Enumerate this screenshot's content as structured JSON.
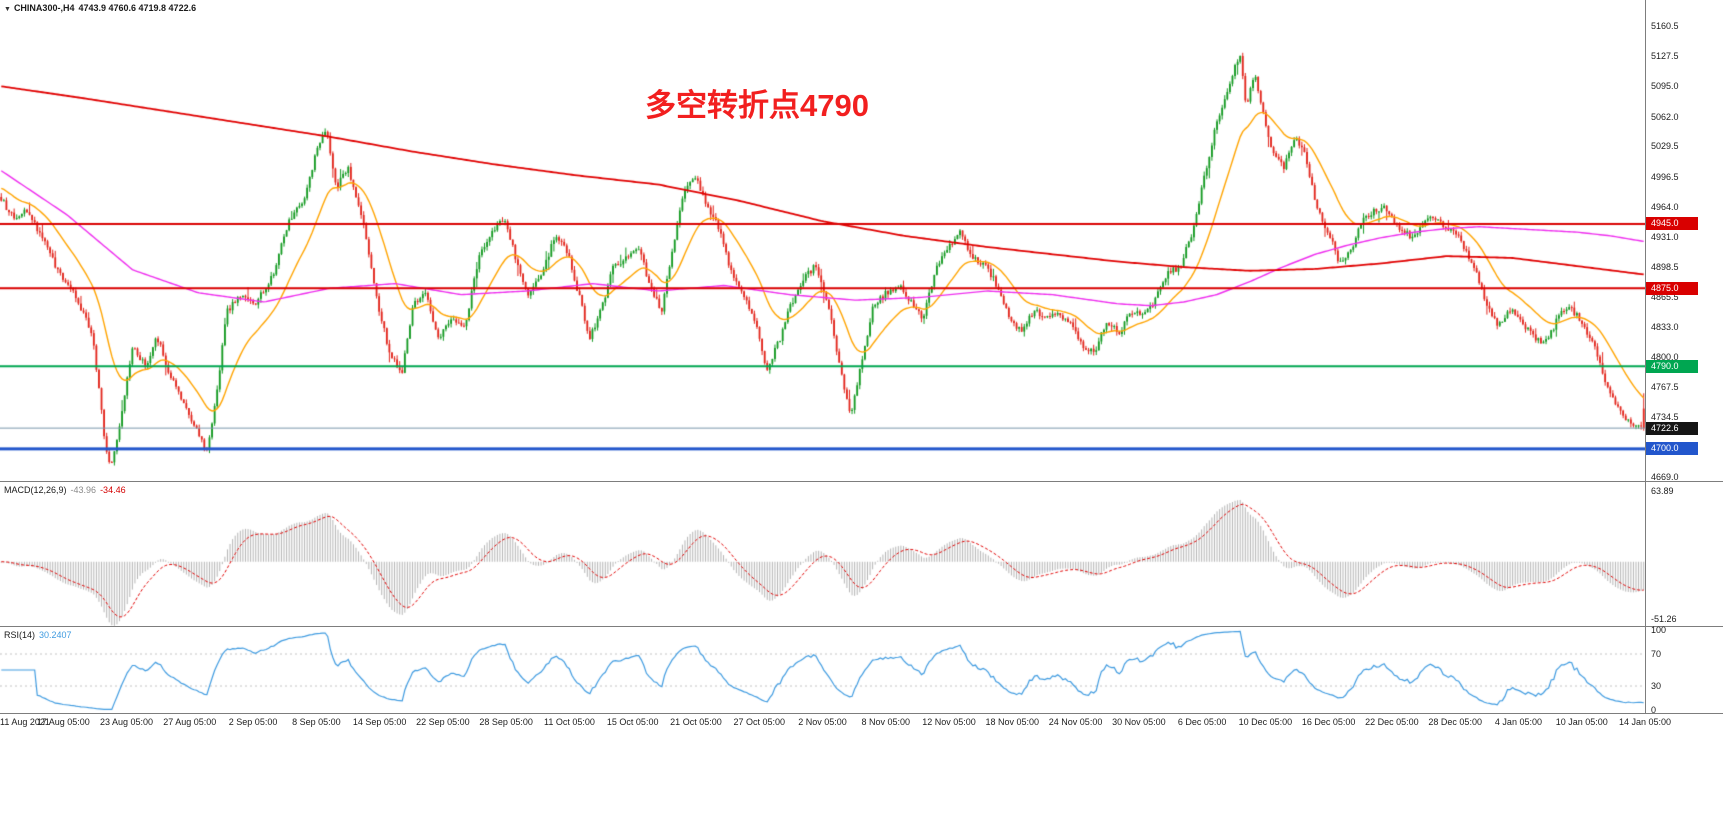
{
  "header": {
    "collapse_icon": "▼",
    "symbol": "CHINA300-,H4",
    "ohlc": "4743.9 4760.6 4719.8 4722.6"
  },
  "annotation": {
    "text": "多空转折点4790"
  },
  "macd_panel": {
    "name": "MACD(12,26,9)",
    "value_main": "-43.96",
    "value_signal": "-34.46"
  },
  "rsi_panel": {
    "name": "RSI(14)",
    "value": "30.2407"
  },
  "colors": {
    "up": "#149a22",
    "down": "#e2261d",
    "ma_fast": "#ffa400",
    "ma_mid": "#ee2dee",
    "ma_slow": "#e00000",
    "level_red": "#d90000",
    "level_green": "#00a651",
    "level_blue": "#2256cc",
    "current_price_line": "#7c98ad",
    "current_price_badge": "#151515",
    "macd_hist": "#b4b4b4",
    "macd_signal": "#e00000",
    "rsi_line": "#3f9be0",
    "rsi_level_line": "#c0c0c0"
  },
  "chart_data": {
    "type": "candlestick",
    "symbol": "CHINA300-",
    "timeframe": "H4",
    "title": "CHINA300-,H4",
    "last_bar": {
      "open": 4743.9,
      "high": 4760.6,
      "low": 4719.8,
      "close": 4722.6
    },
    "candle_count": 640,
    "ylim": [
      4665,
      5189
    ],
    "y_ticks": [
      "5160.5",
      "5127.5",
      "5095.0",
      "5062.0",
      "5029.5",
      "4996.5",
      "4964.0",
      "4931.0",
      "4898.5",
      "4865.5",
      "4833.0",
      "4800.0",
      "4767.5",
      "4734.5",
      "4702.0",
      "4669.0"
    ],
    "x_labels": [
      "11 Aug 2021",
      "17 Aug 05:00",
      "23 Aug 05:00",
      "27 Aug 05:00",
      "2 Sep 05:00",
      "8 Sep 05:00",
      "14 Sep 05:00",
      "22 Sep 05:00",
      "28 Sep 05:00",
      "11 Oct 05:00",
      "15 Oct 05:00",
      "21 Oct 05:00",
      "27 Oct 05:00",
      "2 Nov 05:00",
      "8 Nov 05:00",
      "12 Nov 05:00",
      "18 Nov 05:00",
      "24 Nov 05:00",
      "30 Nov 05:00",
      "6 Dec 05:00",
      "10 Dec 05:00",
      "16 Dec 05:00",
      "22 Dec 05:00",
      "28 Dec 05:00",
      "4 Jan 05:00",
      "10 Jan 05:00",
      "14 Jan 05:00"
    ],
    "levels": [
      {
        "value": 4945.0,
        "label": "4945.0",
        "color": "#d90000",
        "width": 2
      },
      {
        "value": 4875.0,
        "label": "4875.0",
        "color": "#d90000",
        "width": 2
      },
      {
        "value": 4790.0,
        "label": "4790.0",
        "color": "#00a651",
        "width": 2
      },
      {
        "value": 4700.0,
        "label": "4700.0",
        "color": "#2256cc",
        "width": 3
      }
    ],
    "current_price": {
      "value": 4722.6,
      "label": "4722.6"
    },
    "annotation": {
      "text": "多空转折点4790",
      "price": 4790
    },
    "price_path": [
      [
        0.0,
        4972
      ],
      [
        0.008,
        4950
      ],
      [
        0.015,
        4962
      ],
      [
        0.025,
        4930
      ],
      [
        0.035,
        4892
      ],
      [
        0.045,
        4868
      ],
      [
        0.055,
        4828
      ],
      [
        0.06,
        4760
      ],
      [
        0.063,
        4708
      ],
      [
        0.067,
        4680
      ],
      [
        0.072,
        4728
      ],
      [
        0.08,
        4812
      ],
      [
        0.088,
        4790
      ],
      [
        0.095,
        4822
      ],
      [
        0.103,
        4778
      ],
      [
        0.112,
        4746
      ],
      [
        0.12,
        4716
      ],
      [
        0.125,
        4695
      ],
      [
        0.131,
        4758
      ],
      [
        0.137,
        4848
      ],
      [
        0.145,
        4866
      ],
      [
        0.155,
        4860
      ],
      [
        0.165,
        4888
      ],
      [
        0.175,
        4948
      ],
      [
        0.184,
        4972
      ],
      [
        0.193,
        5030
      ],
      [
        0.198,
        5048
      ],
      [
        0.204,
        4985
      ],
      [
        0.211,
        5006
      ],
      [
        0.219,
        4958
      ],
      [
        0.228,
        4868
      ],
      [
        0.237,
        4800
      ],
      [
        0.244,
        4784
      ],
      [
        0.251,
        4858
      ],
      [
        0.259,
        4870
      ],
      [
        0.266,
        4818
      ],
      [
        0.274,
        4844
      ],
      [
        0.282,
        4830
      ],
      [
        0.291,
        4910
      ],
      [
        0.299,
        4938
      ],
      [
        0.307,
        4952
      ],
      [
        0.314,
        4900
      ],
      [
        0.321,
        4866
      ],
      [
        0.329,
        4890
      ],
      [
        0.337,
        4932
      ],
      [
        0.344,
        4918
      ],
      [
        0.352,
        4866
      ],
      [
        0.358,
        4820
      ],
      [
        0.365,
        4850
      ],
      [
        0.372,
        4896
      ],
      [
        0.38,
        4908
      ],
      [
        0.388,
        4920
      ],
      [
        0.395,
        4878
      ],
      [
        0.402,
        4850
      ],
      [
        0.409,
        4918
      ],
      [
        0.416,
        4984
      ],
      [
        0.423,
        4994
      ],
      [
        0.43,
        4962
      ],
      [
        0.438,
        4938
      ],
      [
        0.445,
        4888
      ],
      [
        0.452,
        4866
      ],
      [
        0.459,
        4840
      ],
      [
        0.466,
        4786
      ],
      [
        0.474,
        4820
      ],
      [
        0.481,
        4858
      ],
      [
        0.489,
        4886
      ],
      [
        0.496,
        4900
      ],
      [
        0.504,
        4850
      ],
      [
        0.511,
        4788
      ],
      [
        0.517,
        4736
      ],
      [
        0.524,
        4798
      ],
      [
        0.531,
        4856
      ],
      [
        0.539,
        4870
      ],
      [
        0.547,
        4878
      ],
      [
        0.554,
        4860
      ],
      [
        0.561,
        4840
      ],
      [
        0.569,
        4896
      ],
      [
        0.577,
        4922
      ],
      [
        0.584,
        4936
      ],
      [
        0.591,
        4910
      ],
      [
        0.599,
        4900
      ],
      [
        0.607,
        4876
      ],
      [
        0.614,
        4840
      ],
      [
        0.621,
        4828
      ],
      [
        0.629,
        4850
      ],
      [
        0.636,
        4844
      ],
      [
        0.643,
        4850
      ],
      [
        0.651,
        4836
      ],
      [
        0.659,
        4810
      ],
      [
        0.666,
        4804
      ],
      [
        0.673,
        4840
      ],
      [
        0.681,
        4826
      ],
      [
        0.688,
        4850
      ],
      [
        0.695,
        4846
      ],
      [
        0.702,
        4860
      ],
      [
        0.71,
        4890
      ],
      [
        0.718,
        4900
      ],
      [
        0.726,
        4940
      ],
      [
        0.733,
        5000
      ],
      [
        0.74,
        5056
      ],
      [
        0.747,
        5090
      ],
      [
        0.754,
        5132
      ],
      [
        0.758,
        5072
      ],
      [
        0.763,
        5108
      ],
      [
        0.768,
        5066
      ],
      [
        0.774,
        5026
      ],
      [
        0.781,
        5006
      ],
      [
        0.788,
        5042
      ],
      [
        0.794,
        5020
      ],
      [
        0.801,
        4960
      ],
      [
        0.808,
        4936
      ],
      [
        0.814,
        4906
      ],
      [
        0.821,
        4912
      ],
      [
        0.829,
        4950
      ],
      [
        0.837,
        4960
      ],
      [
        0.844,
        4962
      ],
      [
        0.851,
        4940
      ],
      [
        0.859,
        4930
      ],
      [
        0.866,
        4946
      ],
      [
        0.873,
        4952
      ],
      [
        0.881,
        4940
      ],
      [
        0.889,
        4926
      ],
      [
        0.896,
        4902
      ],
      [
        0.904,
        4860
      ],
      [
        0.911,
        4836
      ],
      [
        0.919,
        4852
      ],
      [
        0.926,
        4836
      ],
      [
        0.934,
        4820
      ],
      [
        0.941,
        4816
      ],
      [
        0.948,
        4844
      ],
      [
        0.955,
        4856
      ],
      [
        0.962,
        4838
      ],
      [
        0.969,
        4816
      ],
      [
        0.977,
        4770
      ],
      [
        0.984,
        4746
      ],
      [
        0.991,
        4728
      ],
      [
        1.0,
        4722.6
      ]
    ],
    "ma_slow_path": [
      [
        0.0,
        5095
      ],
      [
        0.05,
        5082
      ],
      [
        0.1,
        5068
      ],
      [
        0.15,
        5054
      ],
      [
        0.2,
        5040
      ],
      [
        0.25,
        5024
      ],
      [
        0.3,
        5010
      ],
      [
        0.35,
        4998
      ],
      [
        0.4,
        4988
      ],
      [
        0.45,
        4970
      ],
      [
        0.5,
        4948
      ],
      [
        0.55,
        4932
      ],
      [
        0.6,
        4920
      ],
      [
        0.64,
        4912
      ],
      [
        0.68,
        4904
      ],
      [
        0.72,
        4898
      ],
      [
        0.76,
        4894
      ],
      [
        0.8,
        4896
      ],
      [
        0.84,
        4902
      ],
      [
        0.88,
        4910
      ],
      [
        0.92,
        4908
      ],
      [
        0.96,
        4899
      ],
      [
        1.0,
        4890
      ]
    ],
    "ma_mid_path": [
      [
        0.0,
        5003
      ],
      [
        0.04,
        4955
      ],
      [
        0.08,
        4895
      ],
      [
        0.12,
        4870
      ],
      [
        0.16,
        4860
      ],
      [
        0.2,
        4875
      ],
      [
        0.24,
        4880
      ],
      [
        0.28,
        4868
      ],
      [
        0.32,
        4872
      ],
      [
        0.36,
        4880
      ],
      [
        0.4,
        4872
      ],
      [
        0.44,
        4878
      ],
      [
        0.48,
        4868
      ],
      [
        0.52,
        4862
      ],
      [
        0.56,
        4865
      ],
      [
        0.6,
        4872
      ],
      [
        0.64,
        4868
      ],
      [
        0.68,
        4858
      ],
      [
        0.7,
        4856
      ],
      [
        0.72,
        4860
      ],
      [
        0.74,
        4868
      ],
      [
        0.76,
        4882
      ],
      [
        0.78,
        4898
      ],
      [
        0.8,
        4912
      ],
      [
        0.82,
        4922
      ],
      [
        0.84,
        4930
      ],
      [
        0.86,
        4936
      ],
      [
        0.88,
        4940
      ],
      [
        0.9,
        4942
      ],
      [
        0.92,
        4940
      ],
      [
        0.94,
        4938
      ],
      [
        0.96,
        4936
      ],
      [
        0.98,
        4932
      ],
      [
        1.0,
        4926
      ]
    ],
    "ma_fast": {
      "period": 22,
      "seed": 4985
    },
    "macd": {
      "params": [
        12,
        26,
        9
      ],
      "current_main": -43.96,
      "current_signal": -34.46,
      "ylim": [
        -58,
        72
      ],
      "y_ticks": [
        {
          "value": 63.89,
          "label": "63.89"
        },
        {
          "value": -51.26,
          "label": "-51.26"
        }
      ]
    },
    "rsi": {
      "period": 14,
      "current": 30.2407,
      "ylim": [
        0,
        100
      ],
      "levels": [
        70,
        30
      ],
      "y_ticks": [
        {
          "value": 100,
          "label": "100"
        },
        {
          "value": 70,
          "label": "70"
        },
        {
          "value": 30,
          "label": "30"
        },
        {
          "value": 0,
          "label": "0"
        }
      ]
    }
  }
}
